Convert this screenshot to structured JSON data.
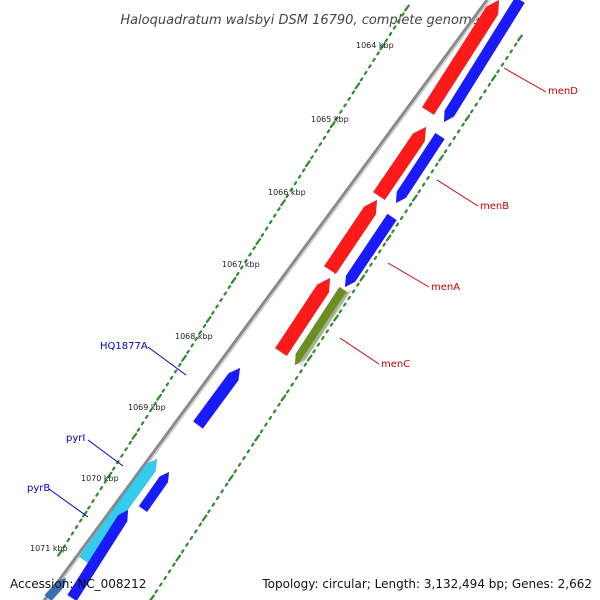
{
  "title": "Haloquadratum walsbyi DSM 16790, complete genome",
  "accession": "Accession: NC_008212",
  "summary": "Topology: circular; Length: 3,132,494 bp; Genes: 2,662",
  "colors": {
    "backbone": "#8a8a8a",
    "tick": "#2e8b2e",
    "forward_cds": "#ff1a1a",
    "reverse_cds": "#1a1aff",
    "highlight_cds": "#33ccee",
    "rna": "#6b8e23",
    "label_red": "#cc0000",
    "label_blue": "#0000cc"
  },
  "kbp_marks": [
    "1064 kbp",
    "1065 kbp",
    "1066 kbp",
    "1067 kbp",
    "1068 kbp",
    "1069 kbp",
    "1070 kbp",
    "1071 kbp"
  ],
  "gene_labels": [
    {
      "text": "menD",
      "color": "#cc0000"
    },
    {
      "text": "menB",
      "color": "#cc0000"
    },
    {
      "text": "menA",
      "color": "#cc0000"
    },
    {
      "text": "menC",
      "color": "#cc0000"
    },
    {
      "text": "HQ1877A",
      "color": "#0000cc"
    },
    {
      "text": "pyrI",
      "color": "#0000cc"
    },
    {
      "text": "pyrB",
      "color": "#0000cc"
    }
  ]
}
